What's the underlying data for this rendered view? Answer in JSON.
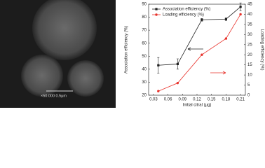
{
  "image_panel": {
    "scale_label": "×50.000 0.5μm"
  },
  "chart_data": {
    "type": "line",
    "xlabel": "Initial citral (μg)",
    "ylabel": "Association efficiency (%)",
    "y2label": "Loading efficiency (%)",
    "x": [
      0.04,
      0.08,
      0.13,
      0.18,
      0.21
    ],
    "xlim": [
      0.02,
      0.22
    ],
    "xticks": [
      0.03,
      0.06,
      0.09,
      0.12,
      0.15,
      0.18,
      0.21
    ],
    "ylim": [
      20,
      90
    ],
    "yticks": [
      20,
      30,
      40,
      50,
      60,
      70,
      80,
      90
    ],
    "y2lim": [
      0,
      45
    ],
    "y2ticks": [
      0,
      5,
      10,
      15,
      20,
      25,
      30,
      35,
      40,
      45
    ],
    "legend": "upper left",
    "series": [
      {
        "name": "Association efficiency (%)",
        "color": "#222222",
        "marker": "square",
        "values": [
          43,
          44,
          78,
          78.5,
          88
        ],
        "errors": [
          6,
          4,
          1,
          1,
          3
        ]
      },
      {
        "name": "Loading efficiency (%)",
        "color": "#e8322b",
        "marker": "circle",
        "axis": "y2",
        "values": [
          2,
          6,
          20,
          28,
          40
        ]
      }
    ]
  }
}
